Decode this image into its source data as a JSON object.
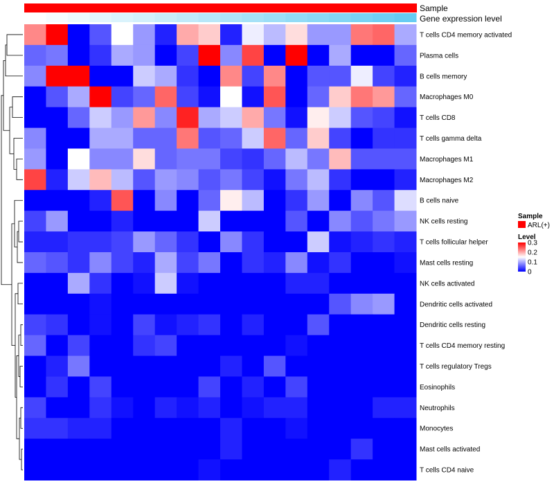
{
  "chart_data": {
    "type": "heatmap",
    "title": "",
    "annotations": [
      {
        "name": "Sample",
        "kind": "categorical",
        "values": "ARL(+) for all columns",
        "color": "#ff0000"
      },
      {
        "name": "Gene expression level",
        "kind": "continuous",
        "color_low": "#ffffff",
        "color_high": "#66ccf2"
      }
    ],
    "row_labels": [
      "T cells CD4 memory activated",
      "Plasma cells",
      "B cells memory",
      "Macrophages M0",
      "T cells CD8",
      "T cells gamma delta",
      "Macrophages M1",
      "Macrophages M2",
      "B cells naive",
      "NK cells resting",
      "T cells follicular helper",
      "Mast cells resting",
      "NK cells activated",
      "Dendritic cells activated",
      "Dendritic cells resting",
      "T cells CD4 memory resting",
      "T cells regulatory  Tregs",
      "Eosinophils",
      "Neutrophils",
      "Monocytes",
      "Mast cells activated",
      "T cells CD4 naive"
    ],
    "n_columns": 18,
    "gene_expression_level": [
      0.0,
      0.06,
      0.12,
      0.18,
      0.24,
      0.29,
      0.35,
      0.41,
      0.47,
      0.53,
      0.59,
      0.65,
      0.71,
      0.76,
      0.82,
      0.88,
      0.94,
      1.0
    ],
    "values": [
      [
        0.22,
        0.3,
        0.0,
        0.05,
        0.15,
        0.09,
        0.02,
        0.2,
        0.18,
        0.02,
        0.14,
        0.11,
        0.17,
        0.09,
        0.09,
        0.23,
        0.24,
        0.1
      ],
      [
        0.06,
        0.07,
        0.0,
        0.03,
        0.1,
        0.09,
        0.0,
        0.04,
        0.3,
        0.08,
        0.26,
        0.0,
        0.3,
        0.0,
        0.1,
        0.0,
        0.0,
        0.06
      ],
      [
        0.08,
        0.3,
        0.3,
        0.0,
        0.0,
        0.12,
        0.1,
        0.03,
        0.0,
        0.22,
        0.04,
        0.22,
        0.0,
        0.05,
        0.05,
        0.14,
        0.04,
        0.02
      ],
      [
        0.0,
        0.05,
        0.1,
        0.3,
        0.04,
        0.06,
        0.24,
        0.04,
        0.01,
        0.15,
        0.01,
        0.25,
        0.0,
        0.06,
        0.18,
        0.23,
        0.21,
        0.06
      ],
      [
        0.0,
        0.0,
        0.06,
        0.12,
        0.09,
        0.21,
        0.08,
        0.28,
        0.1,
        0.12,
        0.2,
        0.07,
        0.01,
        0.16,
        0.12,
        0.05,
        0.04,
        0.01
      ],
      [
        0.08,
        0.0,
        0.0,
        0.1,
        0.1,
        0.06,
        0.06,
        0.23,
        0.05,
        0.06,
        0.12,
        0.24,
        0.06,
        0.18,
        0.04,
        0.0,
        0.03,
        0.03
      ],
      [
        0.09,
        0.0,
        0.15,
        0.08,
        0.08,
        0.17,
        0.06,
        0.07,
        0.07,
        0.04,
        0.03,
        0.06,
        0.11,
        0.07,
        0.19,
        0.05,
        0.05,
        0.05
      ],
      [
        0.26,
        0.02,
        0.12,
        0.19,
        0.11,
        0.05,
        0.09,
        0.08,
        0.05,
        0.07,
        0.04,
        0.01,
        0.07,
        0.11,
        0.03,
        0.0,
        0.0,
        0.02
      ],
      [
        0.0,
        0.0,
        0.0,
        0.02,
        0.25,
        0.0,
        0.08,
        0.0,
        0.06,
        0.16,
        0.11,
        0.0,
        0.03,
        0.09,
        0.0,
        0.08,
        0.05,
        0.13
      ],
      [
        0.04,
        0.09,
        0.0,
        0.0,
        0.02,
        0.0,
        0.0,
        0.0,
        0.12,
        0.0,
        0.0,
        0.0,
        0.05,
        0.0,
        0.08,
        0.05,
        0.07,
        0.09
      ],
      [
        0.02,
        0.02,
        0.03,
        0.03,
        0.04,
        0.09,
        0.06,
        0.03,
        0.0,
        0.08,
        0.03,
        0.0,
        0.0,
        0.12,
        0.01,
        0.02,
        0.03,
        0.02
      ],
      [
        0.06,
        0.05,
        0.03,
        0.08,
        0.04,
        0.02,
        0.1,
        0.04,
        0.07,
        0.0,
        0.03,
        0.02,
        0.08,
        0.01,
        0.03,
        0.0,
        0.0,
        0.01
      ],
      [
        0.0,
        0.0,
        0.1,
        0.03,
        0.0,
        0.01,
        0.12,
        0.01,
        0.0,
        0.0,
        0.0,
        0.0,
        0.02,
        0.02,
        0.0,
        0.0,
        0.0,
        0.0
      ],
      [
        0.0,
        0.0,
        0.0,
        0.01,
        0.0,
        0.0,
        0.0,
        0.0,
        0.0,
        0.0,
        0.0,
        0.0,
        0.0,
        0.0,
        0.05,
        0.08,
        0.09,
        0.0
      ],
      [
        0.04,
        0.03,
        0.0,
        0.01,
        0.0,
        0.04,
        0.01,
        0.02,
        0.03,
        0.0,
        0.02,
        0.0,
        0.0,
        0.05,
        0.0,
        0.0,
        0.0,
        0.0
      ],
      [
        0.06,
        0.0,
        0.04,
        0.0,
        0.0,
        0.03,
        0.04,
        0.0,
        0.0,
        0.0,
        0.0,
        0.0,
        0.01,
        0.0,
        0.0,
        0.0,
        0.0,
        0.0
      ],
      [
        0.0,
        0.02,
        0.07,
        0.0,
        0.0,
        0.0,
        0.0,
        0.0,
        0.0,
        0.02,
        0.0,
        0.05,
        0.0,
        0.0,
        0.0,
        0.0,
        0.0,
        0.0
      ],
      [
        0.0,
        0.03,
        0.0,
        0.04,
        0.0,
        0.0,
        0.0,
        0.0,
        0.04,
        0.0,
        0.02,
        0.0,
        0.04,
        0.0,
        0.0,
        0.0,
        0.0,
        0.0
      ],
      [
        0.04,
        0.0,
        0.0,
        0.03,
        0.01,
        0.0,
        0.02,
        0.01,
        0.02,
        0.0,
        0.01,
        0.02,
        0.02,
        0.0,
        0.0,
        0.0,
        0.02,
        0.02
      ],
      [
        0.03,
        0.03,
        0.02,
        0.02,
        0.0,
        0.0,
        0.0,
        0.0,
        0.0,
        0.02,
        0.0,
        0.0,
        0.01,
        0.0,
        0.0,
        0.0,
        0.0,
        0.0
      ],
      [
        0.0,
        0.0,
        0.0,
        0.0,
        0.0,
        0.0,
        0.0,
        0.0,
        0.0,
        0.02,
        0.0,
        0.0,
        0.0,
        0.0,
        0.0,
        0.03,
        0.0,
        0.0
      ],
      [
        0.0,
        0.0,
        0.0,
        0.0,
        0.0,
        0.0,
        0.0,
        0.0,
        0.01,
        0.0,
        0.0,
        0.0,
        0.0,
        0.0,
        0.02,
        0.0,
        0.0,
        0.0
      ]
    ],
    "color_scale": {
      "low": "#0000ff",
      "mid": "#ffffff",
      "high": "#ff0000",
      "min": 0,
      "mid_value": 0.15,
      "max": 0.3
    },
    "legend": {
      "sample_title": "Sample",
      "sample_entry": "ARL(+)",
      "sample_color": "#ff0000",
      "level_title": "Level",
      "level_ticks": [
        "0.3",
        "0.2",
        "0.1",
        "0"
      ]
    },
    "row_dendrogram": true
  }
}
